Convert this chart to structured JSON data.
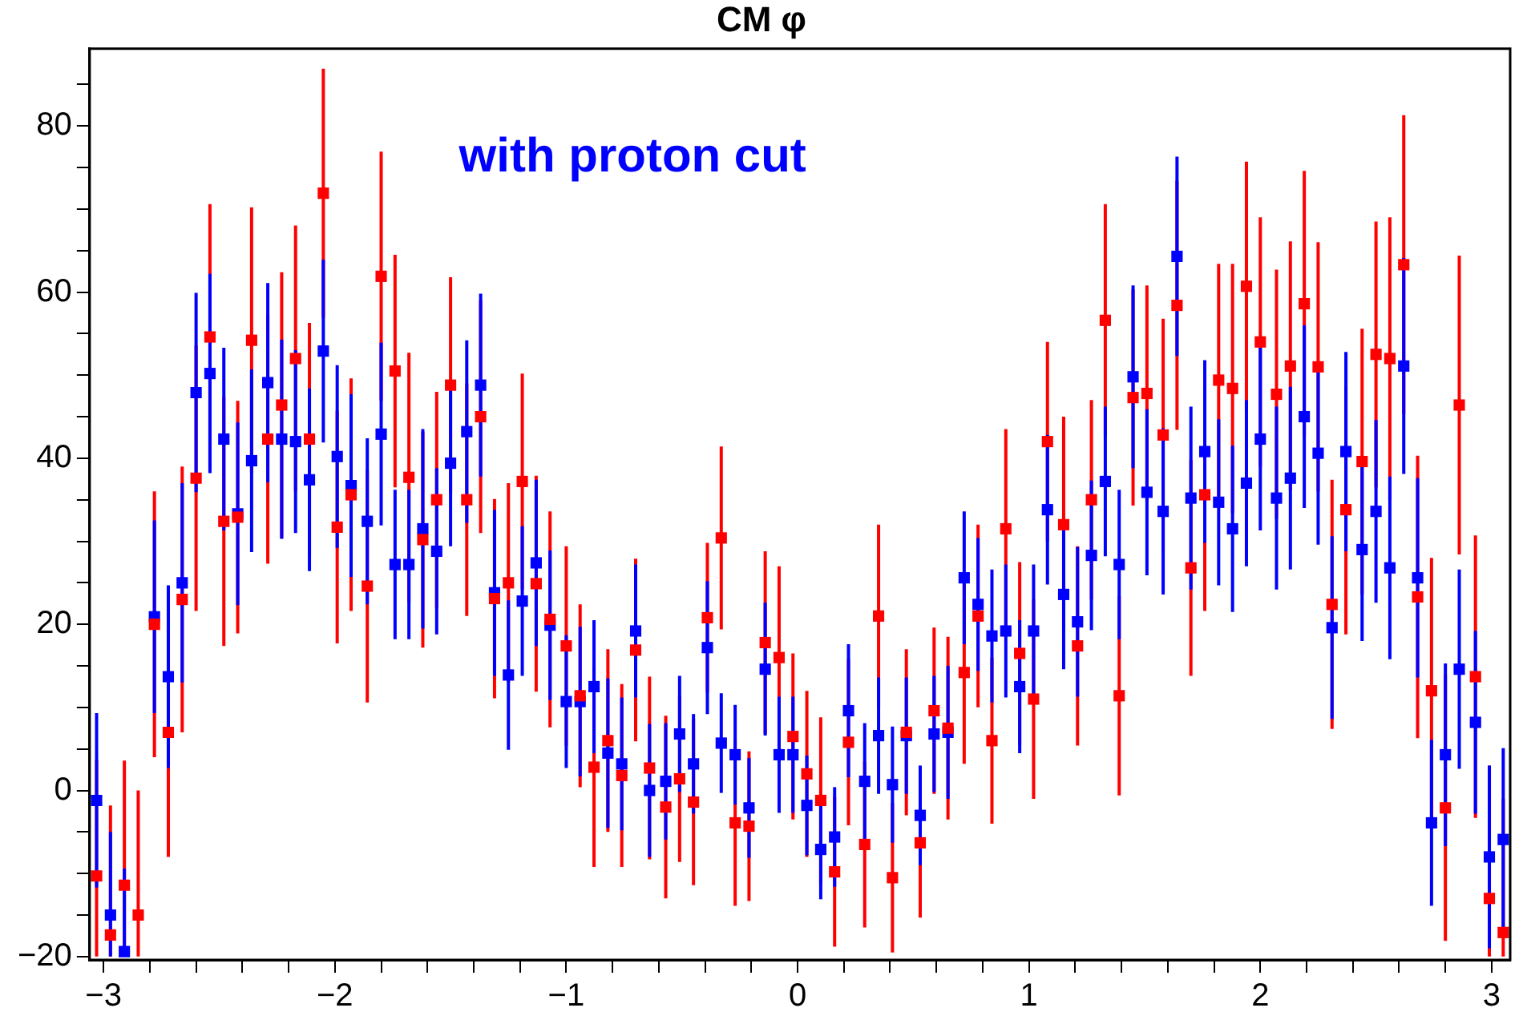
{
  "chart_data": {
    "type": "scatter",
    "title": "CM φ",
    "annotations": [
      "with proton cut"
    ],
    "marker": "square",
    "grid": false,
    "x": [
      -3.03,
      -2.97,
      -2.91,
      -2.85,
      -2.78,
      -2.72,
      -2.66,
      -2.6,
      -2.54,
      -2.48,
      -2.42,
      -2.36,
      -2.29,
      -2.23,
      -2.17,
      -2.11,
      -2.05,
      -1.99,
      -1.93,
      -1.86,
      -1.8,
      -1.74,
      -1.68,
      -1.62,
      -1.56,
      -1.5,
      -1.43,
      -1.37,
      -1.31,
      -1.25,
      -1.19,
      -1.13,
      -1.07,
      -1.0,
      -0.94,
      -0.88,
      -0.82,
      -0.76,
      -0.7,
      -0.64,
      -0.57,
      -0.51,
      -0.45,
      -0.39,
      -0.33,
      -0.27,
      -0.21,
      -0.14,
      -0.08,
      -0.02,
      0.04,
      0.1,
      0.16,
      0.22,
      0.29,
      0.35,
      0.41,
      0.47,
      0.53,
      0.59,
      0.65,
      0.72,
      0.78,
      0.84,
      0.9,
      0.96,
      1.02,
      1.08,
      1.15,
      1.21,
      1.27,
      1.33,
      1.39,
      1.45,
      1.51,
      1.58,
      1.64,
      1.7,
      1.76,
      1.82,
      1.88,
      1.94,
      2.0,
      2.07,
      2.13,
      2.19,
      2.25,
      2.31,
      2.37,
      2.44,
      2.5,
      2.56,
      2.62,
      2.68,
      2.74,
      2.8,
      2.86,
      2.93,
      2.99,
      3.05
    ],
    "xlim": [
      -3.06,
      3.08
    ],
    "xticks": [
      -3,
      {
        "value": -2.8,
        "label": null
      },
      {
        "value": -2.6,
        "label": null
      },
      {
        "value": -2.4,
        "label": null
      },
      {
        "value": -2.2,
        "label": null
      },
      {
        "value": -2,
        "label": "−2"
      },
      {
        "value": -1.8,
        "label": null
      },
      {
        "value": -1.6,
        "label": null
      },
      {
        "value": -1.4,
        "label": null
      },
      {
        "value": -1.2,
        "label": null
      },
      {
        "value": -1,
        "label": "−1"
      },
      {
        "value": -0.8,
        "label": null
      },
      {
        "value": -0.6,
        "label": null
      },
      {
        "value": -0.4,
        "label": null
      },
      {
        "value": -0.2,
        "label": null
      },
      0,
      {
        "value": 0.2,
        "label": null
      },
      {
        "value": 0.4,
        "label": null
      },
      {
        "value": 0.6,
        "label": null
      },
      {
        "value": 0.8,
        "label": null
      },
      1,
      {
        "value": 1.2,
        "label": null
      },
      {
        "value": 1.4,
        "label": null
      },
      {
        "value": 1.6,
        "label": null
      },
      {
        "value": 1.8,
        "label": null
      },
      2,
      {
        "value": 2.2,
        "label": null
      },
      {
        "value": 2.4,
        "label": null
      },
      {
        "value": 2.6,
        "label": null
      },
      {
        "value": 2.8,
        "label": null
      },
      3
    ],
    "ylim": [
      -20.4,
      89.3
    ],
    "yticks": [
      -20,
      {
        "value": -15,
        "label": null
      },
      {
        "value": -10,
        "label": null
      },
      {
        "value": -5,
        "label": null
      },
      0,
      {
        "value": 5,
        "label": null
      },
      {
        "value": 10,
        "label": null
      },
      {
        "value": 15,
        "label": null
      },
      20,
      {
        "value": 25,
        "label": null
      },
      {
        "value": 30,
        "label": null
      },
      {
        "value": 35,
        "label": null
      },
      40,
      {
        "value": 45,
        "label": null
      },
      {
        "value": 50,
        "label": null
      },
      {
        "value": 55,
        "label": null
      },
      60,
      {
        "value": 65,
        "label": null
      },
      {
        "value": 70,
        "label": null
      },
      {
        "value": 75,
        "label": null
      },
      80,
      {
        "value": 85,
        "label": null
      }
    ],
    "series": [
      {
        "color": "#ff0000",
        "values": [
          -10.3,
          -17.4,
          -11.4,
          -15,
          20,
          7,
          23,
          37.6,
          54.6,
          32.4,
          32.9,
          54.2,
          42.3,
          46.4,
          52,
          42.3,
          71.9,
          31.7,
          35.6,
          24.6,
          61.9,
          50.5,
          37.7,
          30.2,
          35,
          48.8,
          35,
          45,
          23.1,
          25,
          37.2,
          24.9,
          20.6,
          17.4,
          11.4,
          2.8,
          6,
          1.8,
          16.9,
          2.7,
          -2,
          1.4,
          -1.4,
          20.8,
          30.4,
          -3.9,
          -4.3,
          17.8,
          16,
          6.5,
          2,
          -1.2,
          -9.8,
          5.8,
          -6.5,
          21,
          -10.5,
          7,
          -6.3,
          9.6,
          7.5,
          14.2,
          21,
          6,
          31.5,
          16.5,
          11,
          42,
          32,
          17.4,
          35,
          56.6,
          11.4,
          47.3,
          47.8,
          42.8,
          58.4,
          26.8,
          35.6,
          49.4,
          48.4,
          60.7,
          54,
          47.7,
          51.1,
          58.6,
          51,
          22.4,
          33.8,
          39.6,
          52.5,
          52,
          63.3,
          23.3,
          12,
          -2.1,
          46.4,
          13.7,
          -13,
          -17.1
        ],
        "errors": [
          [
            -20,
            3.7
          ],
          [
            -20,
            -1.8
          ],
          [
            -20,
            3.6
          ],
          [
            -20,
            0
          ],
          16,
          15,
          16,
          16,
          16,
          15,
          14,
          16,
          15,
          16,
          16,
          14,
          15,
          14,
          14,
          14,
          15,
          14,
          15,
          13,
          13,
          13,
          14,
          14,
          12,
          12,
          13,
          13,
          13,
          12,
          11,
          12,
          11,
          11,
          11,
          11,
          11,
          10,
          10,
          9,
          11,
          10,
          9,
          11,
          11,
          10,
          10,
          10,
          9,
          10,
          10,
          11,
          9,
          10,
          9,
          10,
          11,
          11,
          11,
          10,
          12,
          11,
          12,
          12,
          13,
          12,
          12,
          14,
          12,
          13,
          13,
          14,
          15,
          13,
          14,
          14,
          15,
          15,
          15,
          15,
          15,
          16,
          15,
          15,
          15,
          16,
          16,
          17,
          18,
          17,
          16,
          16,
          18,
          17,
          [
            -20,
            3
          ],
          [
            -20,
            -1
          ]
        ]
      },
      {
        "color": "#0000ff",
        "values": [
          -1.2,
          -15,
          -19.4,
          null,
          20.9,
          13.7,
          25,
          47.9,
          50.2,
          42.3,
          33.3,
          39.7,
          49.1,
          42.3,
          42,
          37.4,
          52.9,
          40.2,
          36.7,
          32.4,
          42.9,
          27.2,
          27.2,
          31.5,
          28.8,
          39.4,
          43.2,
          48.8,
          23.8,
          13.9,
          22.8,
          27.4,
          19.9,
          10.7,
          10.7,
          12.5,
          4.5,
          3.2,
          19.2,
          0,
          1.1,
          6.8,
          3.2,
          17.2,
          5.7,
          4.3,
          -2.1,
          14.6,
          4.3,
          4.3,
          -1.8,
          -7.1,
          -5.6,
          9.6,
          1.1,
          6.6,
          0.7,
          6.6,
          -3,
          6.8,
          7,
          25.6,
          22.4,
          18.6,
          19.2,
          12.5,
          19.2,
          33.8,
          23.6,
          20.3,
          28.3,
          37.2,
          27.2,
          49.8,
          35.9,
          33.6,
          64.3,
          35.2,
          40.8,
          34.7,
          31.5,
          37,
          42.3,
          35.2,
          37.6,
          45,
          40.6,
          19.6,
          40.8,
          29,
          33.6,
          26.8,
          51.1,
          25.6,
          -3.9,
          4.3,
          14.6,
          8.2,
          -8,
          -5.9
        ],
        "errors": [
          10.5,
          [
            -20,
            -5
          ],
          [
            -20,
            -9.4
          ],
          null,
          11.6,
          11,
          12,
          12,
          12,
          11,
          11,
          11,
          12,
          12,
          11,
          11,
          11,
          11,
          11,
          10,
          11,
          9,
          9,
          12,
          10,
          10,
          11,
          11,
          10,
          9,
          9,
          10,
          9,
          8,
          9,
          8,
          9,
          8,
          8,
          8,
          7,
          7,
          6,
          8,
          6,
          6,
          6,
          8,
          7,
          7,
          6,
          6,
          6,
          8,
          7,
          7,
          7,
          7,
          6,
          7,
          8,
          8,
          8,
          8,
          8,
          8,
          8,
          9,
          9,
          9,
          9,
          9,
          9,
          11,
          10,
          10,
          12,
          11,
          11,
          10,
          10,
          10,
          11,
          11,
          11,
          11,
          11,
          11,
          12,
          11,
          11,
          11,
          13,
          12,
          10,
          11,
          12,
          11,
          11,
          11
        ]
      }
    ]
  }
}
